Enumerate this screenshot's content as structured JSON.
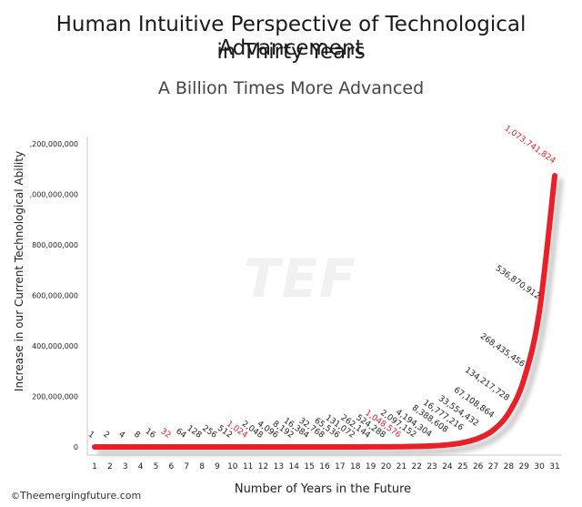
{
  "chart_data": {
    "type": "line",
    "title_line1": "Human Intuitive Perspective of Technological Advancement",
    "title_line2": "in Thirty Years",
    "subtitle": "A Billion Times More Advanced",
    "xlabel": "Number of Years in the Future",
    "ylabel": "Increase in our Current Technological Ability",
    "x": [
      1,
      2,
      3,
      4,
      5,
      6,
      7,
      8,
      9,
      10,
      11,
      12,
      13,
      14,
      15,
      16,
      17,
      18,
      19,
      20,
      21,
      22,
      23,
      24,
      25,
      26,
      27,
      28,
      29,
      30,
      31
    ],
    "values": [
      1,
      2,
      4,
      8,
      16,
      32,
      64,
      128,
      256,
      512,
      1024,
      2048,
      4096,
      8192,
      16384,
      32768,
      65536,
      131072,
      262144,
      524288,
      1048576,
      2097152,
      4194304,
      8388608,
      16777216,
      33554432,
      67108864,
      134217728,
      268435456,
      536870912,
      1073741824
    ],
    "point_labels": [
      "1",
      "2",
      "4",
      "8",
      "16",
      "32",
      "64",
      "128",
      "256",
      "512",
      "1,024",
      "2,048",
      "4,096",
      "8,192",
      "16,384",
      "32,768",
      "65,536",
      "131,072",
      "262,144",
      "524,288",
      "1,048,576",
      "2,097,152",
      "4,194,304",
      "8,388,608",
      "16,777,216",
      "33,554,432",
      "67,108,864",
      "134,217,728",
      "268,435,456",
      "536,870,912",
      "1,073,741,824"
    ],
    "highlighted_x": [
      6,
      11,
      21,
      31
    ],
    "xlim": [
      1,
      31
    ],
    "ylim": [
      0,
      1200000000
    ],
    "y_ticks": [
      0,
      200000000,
      400000000,
      600000000,
      800000000,
      1000000000,
      1200000000
    ],
    "y_tick_labels": [
      "0",
      "200,000,000",
      "400,000,000",
      "600,000,000",
      "800,000,000",
      ",000,000,000",
      ",200,000,000"
    ],
    "grid": false,
    "colors": {
      "line": "#e8202a",
      "highlight_label": "#e8202a",
      "normal_label": "#222222",
      "shadow": "#bdbdbd"
    }
  },
  "credit": {
    "symbol": "©",
    "text": "Theemergingfuture.com"
  },
  "watermark": "TEF"
}
